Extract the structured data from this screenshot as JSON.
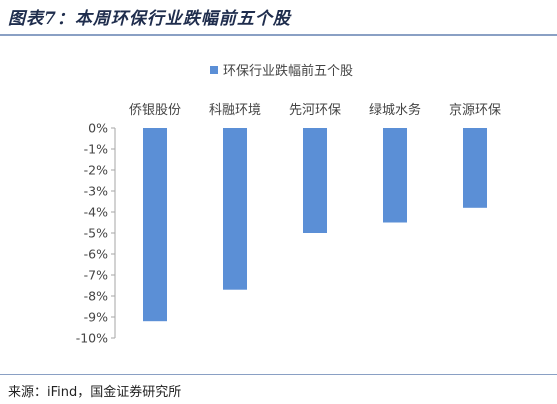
{
  "title": "图表7：本周环保行业跌幅前五个股",
  "source": "来源：iFind，国金证券研究所",
  "chart_data": {
    "type": "bar",
    "title": "",
    "xlabel": "",
    "ylabel": "",
    "legend": {
      "label": "环保行业跌幅前五个股",
      "position": "top"
    },
    "categories": [
      "侨银股份",
      "科融环境",
      "先河环保",
      "绿城水务",
      "京源环保"
    ],
    "series": [
      {
        "name": "环保行业跌幅前五个股",
        "values": [
          -9.2,
          -7.7,
          -5.0,
          -4.5,
          -3.8
        ]
      }
    ],
    "ylim": [
      -10,
      0
    ],
    "yticks": [
      "0%",
      "-1%",
      "-2%",
      "-3%",
      "-4%",
      "-5%",
      "-6%",
      "-7%",
      "-8%",
      "-9%",
      "-10%"
    ],
    "color": "#5b8fd6",
    "grid": false
  }
}
